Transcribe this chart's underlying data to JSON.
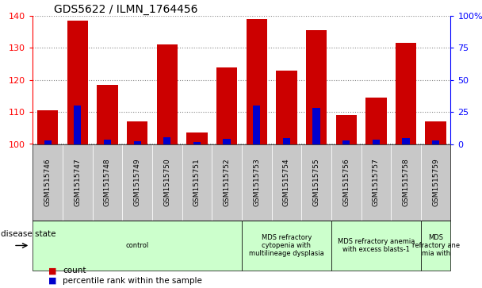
{
  "title": "GDS5622 / ILMN_1764456",
  "samples": [
    "GSM1515746",
    "GSM1515747",
    "GSM1515748",
    "GSM1515749",
    "GSM1515750",
    "GSM1515751",
    "GSM1515752",
    "GSM1515753",
    "GSM1515754",
    "GSM1515755",
    "GSM1515756",
    "GSM1515757",
    "GSM1515758",
    "GSM1515759"
  ],
  "counts": [
    110.5,
    138.5,
    118.5,
    107.0,
    131.0,
    103.5,
    124.0,
    139.0,
    123.0,
    135.5,
    109.0,
    114.5,
    131.5,
    107.0
  ],
  "percentile_ranks": [
    2.5,
    30.0,
    3.5,
    2.0,
    5.0,
    1.5,
    4.0,
    30.0,
    4.5,
    28.0,
    3.0,
    3.5,
    4.5,
    3.0
  ],
  "ymin": 100,
  "ymax": 140,
  "yticks_left": [
    100,
    110,
    120,
    130,
    140
  ],
  "yticks_right": [
    0,
    25,
    50,
    75,
    100
  ],
  "bar_color": "#cc0000",
  "percentile_color": "#0000cc",
  "plot_bg": "#ffffff",
  "xtick_bg": "#c8c8c8",
  "disease_groups": [
    {
      "label": "control",
      "start": 0,
      "end": 7,
      "color": "#ccffcc"
    },
    {
      "label": "MDS refractory\ncytopenia with\nmultilineage dysplasia",
      "start": 7,
      "end": 10,
      "color": "#ccffcc"
    },
    {
      "label": "MDS refractory anemia\nwith excess blasts-1",
      "start": 10,
      "end": 13,
      "color": "#ccffcc"
    },
    {
      "label": "MDS\nrefractory ane\nmia with",
      "start": 13,
      "end": 14,
      "color": "#ccffcc"
    }
  ],
  "legend_count_label": "count",
  "legend_pct_label": "percentile rank within the sample",
  "disease_state_label": "disease state"
}
